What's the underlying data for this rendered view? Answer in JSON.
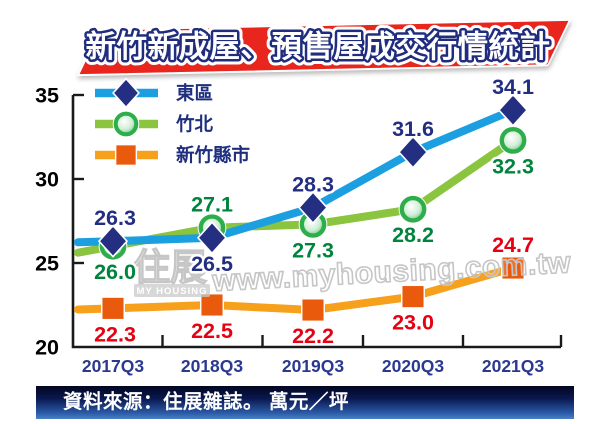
{
  "title_banner": {
    "text": "新竹新成屋、預售屋成交行情統計",
    "bg_color": "#E8261D",
    "text_color": "#FFFFFF",
    "outline_color": "#202D7E"
  },
  "source_bar": {
    "text": "資料來源：住展雜誌。 萬元／坪"
  },
  "watermark": {
    "logo_text": "住展",
    "logo_sub": "MY HOUSING",
    "url_text": "www.myhousing.com.tw"
  },
  "chart_data": {
    "type": "line",
    "title": "新竹新成屋、預售屋成交行情統計",
    "unit": "萬元／坪",
    "categories": [
      "2017Q3",
      "2018Q3",
      "2019Q3",
      "2020Q3",
      "2021Q3"
    ],
    "series": [
      {
        "key": "east-district",
        "name": "東區",
        "values": [
          26.3,
          26.5,
          28.3,
          31.6,
          34.1
        ],
        "line_color": "#1B9FE0",
        "marker": "diamond",
        "marker_color": "#252F82",
        "label_color": "#232E82",
        "label_pos": [
          "above",
          "below",
          "above",
          "above",
          "above"
        ]
      },
      {
        "key": "zhubei",
        "name": "竹北",
        "values": [
          26.0,
          27.1,
          27.3,
          28.2,
          32.3
        ],
        "line_color": "#8BC53F",
        "marker": "circle",
        "marker_color": "#2EAE4A",
        "label_color": "#00843D",
        "label_pos": [
          "below",
          "above",
          "below",
          "below",
          "below"
        ]
      },
      {
        "key": "hsinchu-county-city",
        "name": "新竹縣市",
        "values": [
          22.3,
          22.5,
          22.2,
          23.0,
          24.7
        ],
        "line_color": "#F6A01B",
        "marker": "square",
        "marker_color": "#E95A0C",
        "label_color": "#E60012",
        "label_pos": [
          "below",
          "below",
          "below",
          "below",
          "above"
        ]
      }
    ],
    "ylim": [
      20,
      35
    ],
    "yticks": [
      35,
      30,
      25,
      20
    ],
    "grid": false,
    "legend_position": "top-left",
    "axis_color": "#1a1a1a",
    "xtick_label_color": "#2B3990",
    "ytick_label_color": "#000000",
    "value_decimals": 1
  }
}
